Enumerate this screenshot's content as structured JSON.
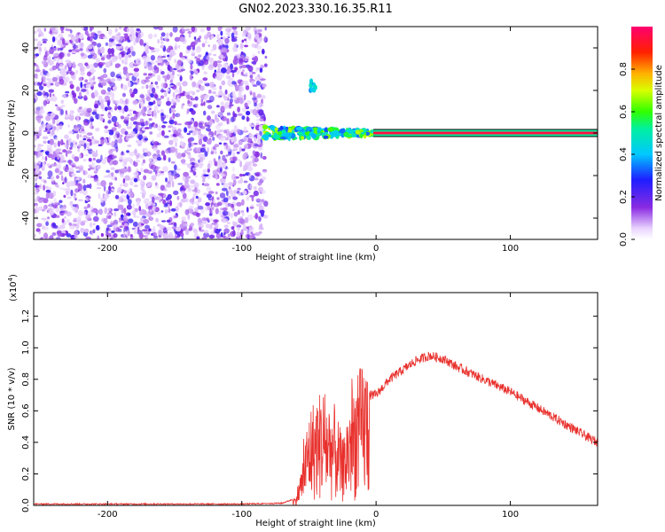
{
  "page_title": "GN02.2023.330.16.35.R11",
  "chart_data": [
    {
      "type": "heatmap",
      "title": "GN02.2023.330.16.35.R11",
      "xlabel": "Height of straight line (km)",
      "ylabel": "Frequency (Hz)",
      "xlim": [
        -255,
        165
      ],
      "ylim": [
        -50,
        50
      ],
      "x_ticks": [
        -200,
        -100,
        0,
        100
      ],
      "x_tick_labels": [
        "-200",
        "-100",
        "0",
        "100"
      ],
      "y_ticks": [
        -40,
        -20,
        0,
        20,
        40
      ],
      "y_tick_labels": [
        "-40",
        "-20",
        "0",
        "20",
        "40"
      ],
      "colorbar": {
        "label": "Normalized spectral amplitude",
        "range": [
          0,
          1
        ],
        "ticks": [
          0.0,
          0.2,
          0.4,
          0.6,
          0.8
        ],
        "tick_labels": [
          "0.0",
          "0.2",
          "0.4",
          "0.6",
          "0.8"
        ]
      },
      "features": {
        "noise_region_x": [
          -255,
          -82
        ],
        "noise_amplitude_range": [
          0.05,
          0.25
        ],
        "scattered_signal_x": [
          -85,
          -2
        ],
        "scattered_signal_amplitude_range": [
          0.3,
          0.7
        ],
        "steady_line_x": [
          -2,
          165
        ],
        "steady_line_frequency_hz": 0,
        "steady_line_amplitude": 0.95,
        "side_blob_x": -47,
        "side_blob_frequency_hz": 22
      }
    },
    {
      "type": "line",
      "title": "",
      "xlabel": "Height of straight line (km)",
      "ylabel": "SNR (10 * v/v)",
      "y_scale_note": "(x10",
      "y_scale_exp": "4",
      "xlim": [
        -255,
        165
      ],
      "ylim": [
        0,
        1.35
      ],
      "x_ticks": [
        -200,
        -100,
        0,
        100
      ],
      "x_tick_labels": [
        "-200",
        "-100",
        "0",
        "100"
      ],
      "y_ticks": [
        0.0,
        0.2,
        0.4,
        0.6,
        0.8,
        1.0,
        1.2
      ],
      "y_tick_labels": [
        "0.0",
        "0.2",
        "0.4",
        "0.6",
        "0.8",
        "1.0",
        "1.2"
      ],
      "color": "#e8302c",
      "series": [
        {
          "name": "",
          "x": [
            -255,
            -200,
            -150,
            -100,
            -70,
            -60,
            -55,
            -50,
            -45,
            -40,
            -35,
            -30,
            -25,
            -20,
            -15,
            -10,
            -5,
            0,
            10,
            20,
            30,
            40,
            50,
            60,
            80,
            100,
            120,
            140,
            160,
            165
          ],
          "y": [
            0.005,
            0.005,
            0.005,
            0.005,
            0.01,
            0.04,
            0.2,
            0.45,
            0.5,
            0.55,
            0.5,
            0.45,
            0.3,
            0.5,
            0.6,
            0.65,
            0.7,
            0.7,
            0.8,
            0.86,
            0.92,
            0.95,
            0.93,
            0.88,
            0.8,
            0.72,
            0.62,
            0.52,
            0.42,
            0.4
          ]
        }
      ]
    }
  ]
}
